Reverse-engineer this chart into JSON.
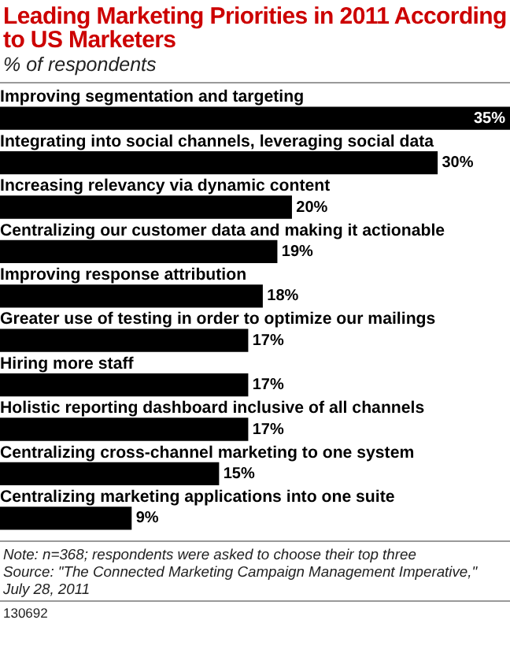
{
  "chart_data": {
    "type": "bar",
    "orientation": "horizontal",
    "title": "Leading Marketing Priorities in 2011 According to US Marketers",
    "subtitle": "% of respondents",
    "categories": [
      "Improving segmentation and targeting",
      "Integrating into social channels, leveraging social data",
      "Increasing relevancy via dynamic content",
      "Centralizing our customer data and making it actionable",
      "Improving response attribution",
      "Greater use of testing in order to optimize our mailings",
      "Hiring more staff",
      "Holistic reporting dashboard inclusive of all channels",
      "Centralizing cross-channel marketing to one system",
      "Centralizing marketing applications into one suite"
    ],
    "values": [
      35,
      30,
      20,
      19,
      18,
      17,
      17,
      17,
      15,
      9
    ],
    "value_labels": [
      "35%",
      "30%",
      "20%",
      "19%",
      "18%",
      "17%",
      "17%",
      "17%",
      "15%",
      "9%"
    ],
    "color": "#000000",
    "annotations": [
      "Note: n=368; respondents were asked to choose their top three",
      "Source: \"The Connected Marketing Campaign Management Imperative,\" July 28, 2011",
      "130692"
    ]
  }
}
